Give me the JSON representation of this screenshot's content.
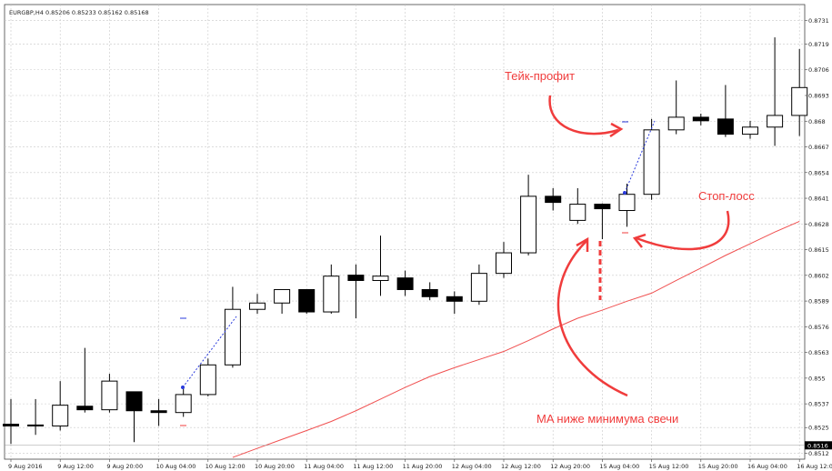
{
  "chart_data": {
    "type": "candlestick",
    "header": "EURGBP,H4  0.85206 0.85233 0.85162 0.85168",
    "categories": [
      "9 Aug 2016",
      null,
      "9 Aug 12:00",
      null,
      "9 Aug 20:00",
      null,
      "10 Aug 04:00",
      null,
      "10 Aug 12:00",
      null,
      "10 Aug 20:00",
      null,
      "11 Aug 04:00",
      null,
      "11 Aug 12:00",
      null,
      "11 Aug 20:00",
      null,
      "12 Aug 04:00",
      null,
      "12 Aug 12:00",
      null,
      "12 Aug 20:00",
      null,
      "15 Aug 04:00",
      null,
      "15 Aug 12:00",
      null,
      "15 Aug 20:00",
      null,
      "16 Aug 04:00",
      null,
      "16 Aug 12:00"
    ],
    "open": [
      0.85267,
      0.85263,
      0.85258,
      0.85358,
      0.8534,
      0.85431,
      0.85335,
      0.85326,
      0.85417,
      0.85567,
      0.85848,
      0.8588,
      0.85948,
      0.85835,
      0.86021,
      0.85994,
      0.86007,
      0.85948,
      0.85912,
      0.85889,
      0.8603,
      0.86134,
      0.8642,
      0.86298,
      0.8638,
      0.86348,
      0.8643,
      0.86756,
      0.8682,
      0.86811,
      0.86734,
      0.8677,
      0.86829
    ],
    "high": [
      0.85394,
      0.85394,
      0.85485,
      0.85653,
      0.85522,
      0.85431,
      0.85394,
      0.85462,
      0.85599,
      0.85962,
      0.85926,
      0.85948,
      0.85948,
      0.86075,
      0.86075,
      0.86221,
      0.86044,
      0.85985,
      0.85939,
      0.86075,
      0.86189,
      0.86529,
      0.86461,
      0.86461,
      0.86384,
      0.86484,
      0.86811,
      0.87006,
      0.86838,
      0.86983,
      0.86802,
      0.87224,
      0.87165
    ],
    "low": [
      0.85167,
      0.85213,
      0.85235,
      0.85326,
      0.85326,
      0.85176,
      0.85258,
      0.85304,
      0.85408,
      0.85553,
      0.85826,
      0.85826,
      0.85826,
      0.85826,
      0.85803,
      0.85916,
      0.85916,
      0.85894,
      0.85826,
      0.85871,
      0.86007,
      0.86121,
      0.86348,
      0.8628,
      0.86203,
      0.86266,
      0.86402,
      0.86734,
      0.86779,
      0.8672,
      0.86711,
      0.86675,
      0.86725
    ],
    "close": [
      0.85258,
      0.85258,
      0.85363,
      0.8534,
      0.85485,
      0.85335,
      0.85326,
      0.85417,
      0.85567,
      0.85848,
      0.8588,
      0.85948,
      0.85835,
      0.86016,
      0.85994,
      0.86016,
      0.85948,
      0.85912,
      0.85889,
      0.8603,
      0.86134,
      0.8642,
      0.86389,
      0.8638,
      0.86357,
      0.8643,
      0.86756,
      0.8682,
      0.86802,
      0.86734,
      0.8677,
      0.86829,
      0.8697
    ],
    "ma": [
      null,
      null,
      null,
      null,
      null,
      null,
      null,
      null,
      null,
      0.85099,
      0.85145,
      0.8519,
      0.85235,
      0.85281,
      0.85335,
      0.85394,
      0.85453,
      0.85508,
      0.85553,
      0.85594,
      0.85635,
      0.8569,
      0.85749,
      0.85803,
      0.85844,
      0.85889,
      0.8593,
      0.85994,
      0.86057,
      0.86121,
      0.8618,
      0.86239,
      0.86293
    ],
    "ma_color": "#f05050",
    "up_color": "#ffffff",
    "down_color": "#000000",
    "ylim": [
      0.8509,
      0.8739
    ],
    "yticks": [
      0.8731,
      0.8719,
      0.8706,
      0.8693,
      0.868,
      0.8667,
      0.8654,
      0.8641,
      0.8628,
      0.8615,
      0.8602,
      0.8589,
      0.8576,
      0.8563,
      0.855,
      0.8537,
      0.8525,
      0.8512
    ],
    "current_price": 0.8516,
    "grid": true,
    "annotations": [
      "Тейк-профит",
      "Стоп-лосс",
      "MA ниже минимума свечи"
    ]
  }
}
